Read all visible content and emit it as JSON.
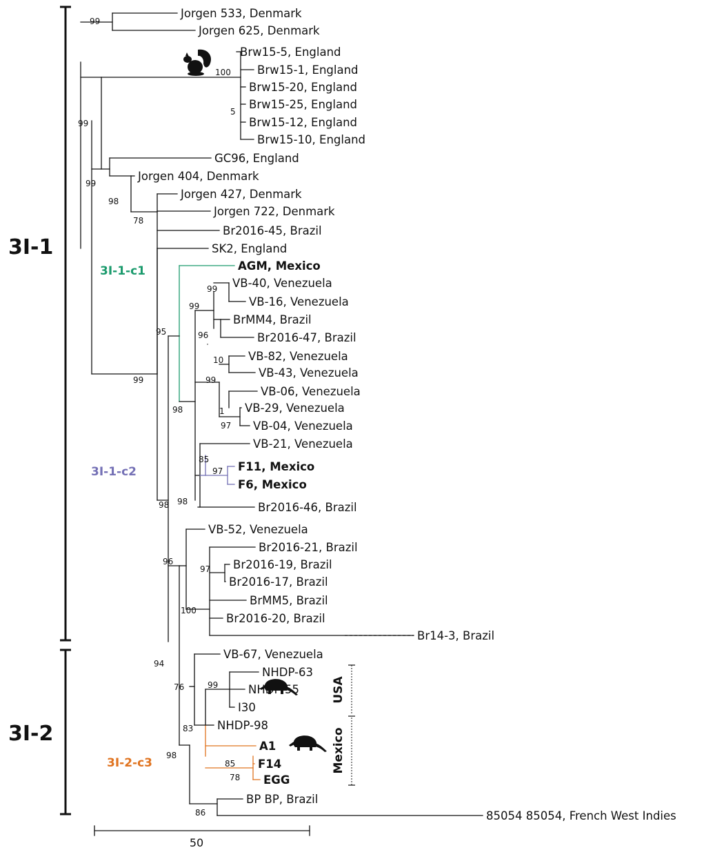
{
  "colors": {
    "black": "#111111",
    "green": "#1a9a6c",
    "purple": "#7470b5",
    "orange": "#e0731f"
  },
  "clades": {
    "c31_1": "3I-1",
    "c31_2": "3I-2"
  },
  "subclades": {
    "c1": "3I-1-c1",
    "c2": "3I-1-c2",
    "c3": "3I-2-c3"
  },
  "regions": {
    "usa": "USA",
    "mexico": "Mexico"
  },
  "scale": {
    "label": "50"
  },
  "icons": [
    "squirrel-icon",
    "armadillo-icon",
    "armadillo-icon"
  ],
  "leaves": [
    {
      "id": "jorgen533",
      "label": "Jorgen 533, Denmark"
    },
    {
      "id": "jorgen625",
      "label": "Jorgen 625, Denmark"
    },
    {
      "id": "brw15_5",
      "label": "Brw15-5, England"
    },
    {
      "id": "brw15_1",
      "label": "Brw15-1, England"
    },
    {
      "id": "brw15_20",
      "label": "Brw15-20, England"
    },
    {
      "id": "brw15_25",
      "label": "Brw15-25, England"
    },
    {
      "id": "brw15_12",
      "label": "Brw15-12, England"
    },
    {
      "id": "brw15_10",
      "label": "Brw15-10, England"
    },
    {
      "id": "gc96",
      "label": "GC96, England"
    },
    {
      "id": "jorgen404",
      "label": "Jorgen 404, Denmark"
    },
    {
      "id": "jorgen427",
      "label": "Jorgen 427, Denmark"
    },
    {
      "id": "jorgen722",
      "label": "Jorgen 722, Denmark"
    },
    {
      "id": "br2016_45",
      "label": "Br2016-45, Brazil"
    },
    {
      "id": "sk2",
      "label": "SK2, England"
    },
    {
      "id": "agm",
      "label": "AGM, Mexico"
    },
    {
      "id": "vb40",
      "label": "VB-40, Venezuela"
    },
    {
      "id": "vb16",
      "label": "VB-16, Venezuela"
    },
    {
      "id": "brmm4",
      "label": "BrMM4, Brazil"
    },
    {
      "id": "br2016_47",
      "label": "Br2016-47, Brazil"
    },
    {
      "id": "vb82",
      "label": "VB-82, Venezuela"
    },
    {
      "id": "vb43",
      "label": "VB-43, Venezuela"
    },
    {
      "id": "vb06",
      "label": "VB-06, Venezuela"
    },
    {
      "id": "vb29",
      "label": "VB-29, Venezuela"
    },
    {
      "id": "vb04",
      "label": "VB-04, Venezuela"
    },
    {
      "id": "vb21",
      "label": "VB-21, Venezuela"
    },
    {
      "id": "f11",
      "label": "F11, Mexico"
    },
    {
      "id": "f6",
      "label": "F6, Mexico"
    },
    {
      "id": "br2016_46",
      "label": "Br2016-46, Brazil"
    },
    {
      "id": "vb52",
      "label": "VB-52, Venezuela"
    },
    {
      "id": "br2016_21",
      "label": "Br2016-21, Brazil"
    },
    {
      "id": "br2016_19",
      "label": "Br2016-19, Brazil"
    },
    {
      "id": "br2016_17",
      "label": "Br2016-17, Brazil"
    },
    {
      "id": "brmm5",
      "label": "BrMM5, Brazil"
    },
    {
      "id": "br2016_20",
      "label": "Br2016-20, Brazil"
    },
    {
      "id": "br14_3",
      "label": "Br14-3, Brazil"
    },
    {
      "id": "vb67",
      "label": "VB-67, Venezuela"
    },
    {
      "id": "nhdp63",
      "label": "NHDP-63"
    },
    {
      "id": "nhdp55",
      "label": "NHDP-55"
    },
    {
      "id": "i30",
      "label": "I30"
    },
    {
      "id": "nhdp98",
      "label": "NHDP-98"
    },
    {
      "id": "a1",
      "label": "A1"
    },
    {
      "id": "f14",
      "label": "F14"
    },
    {
      "id": "egg",
      "label": "EGG"
    },
    {
      "id": "bp",
      "label": "BP BP, Brazil"
    },
    {
      "id": "b85054",
      "label": "85054 85054, French West Indies"
    }
  ],
  "bootstrap": [
    "99",
    "100",
    "5",
    "99",
    "99",
    "98",
    "78",
    "99",
    "95",
    "99",
    "99",
    "96",
    "10",
    "99",
    "1",
    "97",
    "98",
    "85",
    "97",
    "98",
    "98",
    "96",
    "97",
    "100",
    "94",
    "76",
    "99",
    "83",
    "85",
    "78",
    "98",
    "86"
  ]
}
